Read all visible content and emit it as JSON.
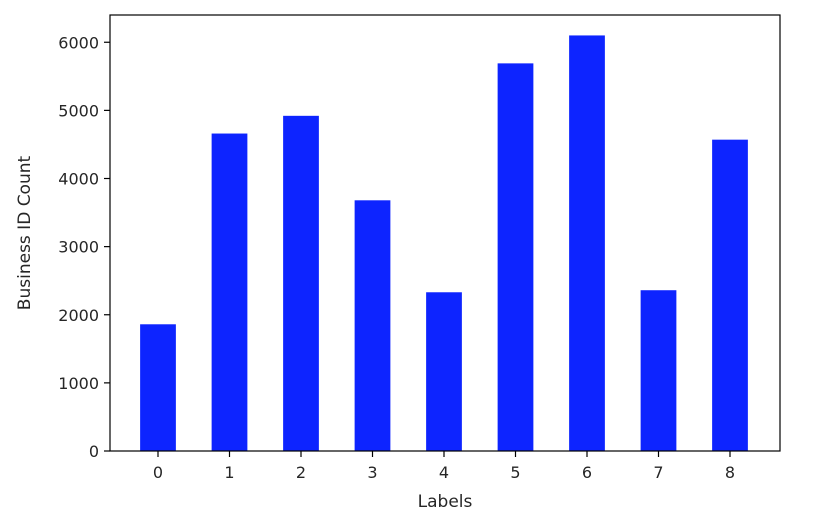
{
  "chart_data": {
    "type": "bar",
    "categories": [
      "0",
      "1",
      "2",
      "3",
      "4",
      "5",
      "6",
      "7",
      "8"
    ],
    "values": [
      1860,
      4660,
      4920,
      3680,
      2330,
      5690,
      6100,
      2360,
      4570
    ],
    "title": "",
    "xlabel": "Labels",
    "ylabel": "Business ID Count",
    "ylim": [
      0,
      6400
    ],
    "yticks": [
      0,
      1000,
      2000,
      3000,
      4000,
      5000,
      6000
    ],
    "grid": false,
    "legend": "none",
    "bar_color": "#0d24ff"
  }
}
